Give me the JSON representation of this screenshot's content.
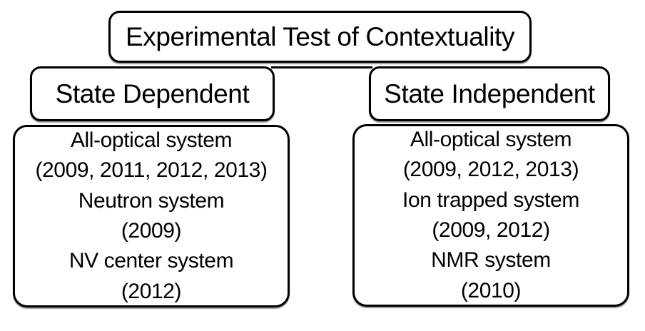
{
  "colors": {
    "border": "#000000",
    "text": "#000000",
    "background": "#ffffff"
  },
  "diagram": {
    "root": {
      "label": "Experimental Test of Contextuality"
    },
    "branches": [
      {
        "label": "State Dependent",
        "systems": [
          {
            "name": "All-optical system",
            "years": "(2009, 2011, 2012, 2013)"
          },
          {
            "name": "Neutron system",
            "years": "(2009)"
          },
          {
            "name": "NV center system",
            "years": "(2012)"
          }
        ]
      },
      {
        "label": "State Independent",
        "systems": [
          {
            "name": "All-optical system",
            "years": "(2009, 2012, 2013)"
          },
          {
            "name": "Ion trapped system",
            "years": "(2009, 2012)"
          },
          {
            "name": "NMR system",
            "years": "(2010)"
          }
        ]
      }
    ]
  }
}
